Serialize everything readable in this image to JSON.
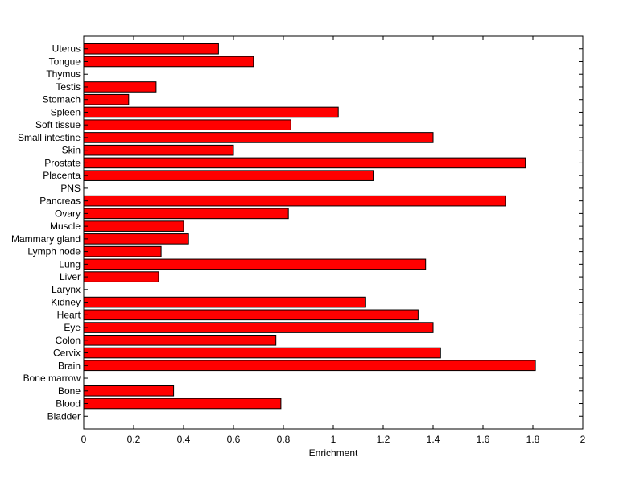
{
  "chart_data": {
    "type": "bar",
    "orientation": "horizontal",
    "title": "",
    "xlabel": "Enrichment",
    "ylabel": "",
    "xlim": [
      0,
      2
    ],
    "x_ticks": [
      "0",
      "0.2",
      "0.4",
      "0.6",
      "0.8",
      "1",
      "1.2",
      "1.4",
      "1.6",
      "1.8",
      "2"
    ],
    "grid": false,
    "bar_color": "#ff0000",
    "categories": [
      "Bladder",
      "Blood",
      "Bone",
      "Bone marrow",
      "Brain",
      "Cervix",
      "Colon",
      "Eye",
      "Heart",
      "Kidney",
      "Larynx",
      "Liver",
      "Lung",
      "Lymph node",
      "Mammary gland",
      "Muscle",
      "Ovary",
      "Pancreas",
      "PNS",
      "Placenta",
      "Prostate",
      "Skin",
      "Small intestine",
      "Soft tissue",
      "Spleen",
      "Stomach",
      "Testis",
      "Thymus",
      "Tongue",
      "Uterus"
    ],
    "values": [
      0,
      0.79,
      0.36,
      0,
      1.81,
      1.43,
      0.77,
      1.4,
      1.34,
      1.13,
      0,
      0.3,
      1.37,
      0.31,
      0.42,
      0.4,
      0.82,
      1.69,
      0,
      1.16,
      1.77,
      0.6,
      1.4,
      0.83,
      1.02,
      0.18,
      0.29,
      0,
      0.68,
      0.54
    ]
  }
}
